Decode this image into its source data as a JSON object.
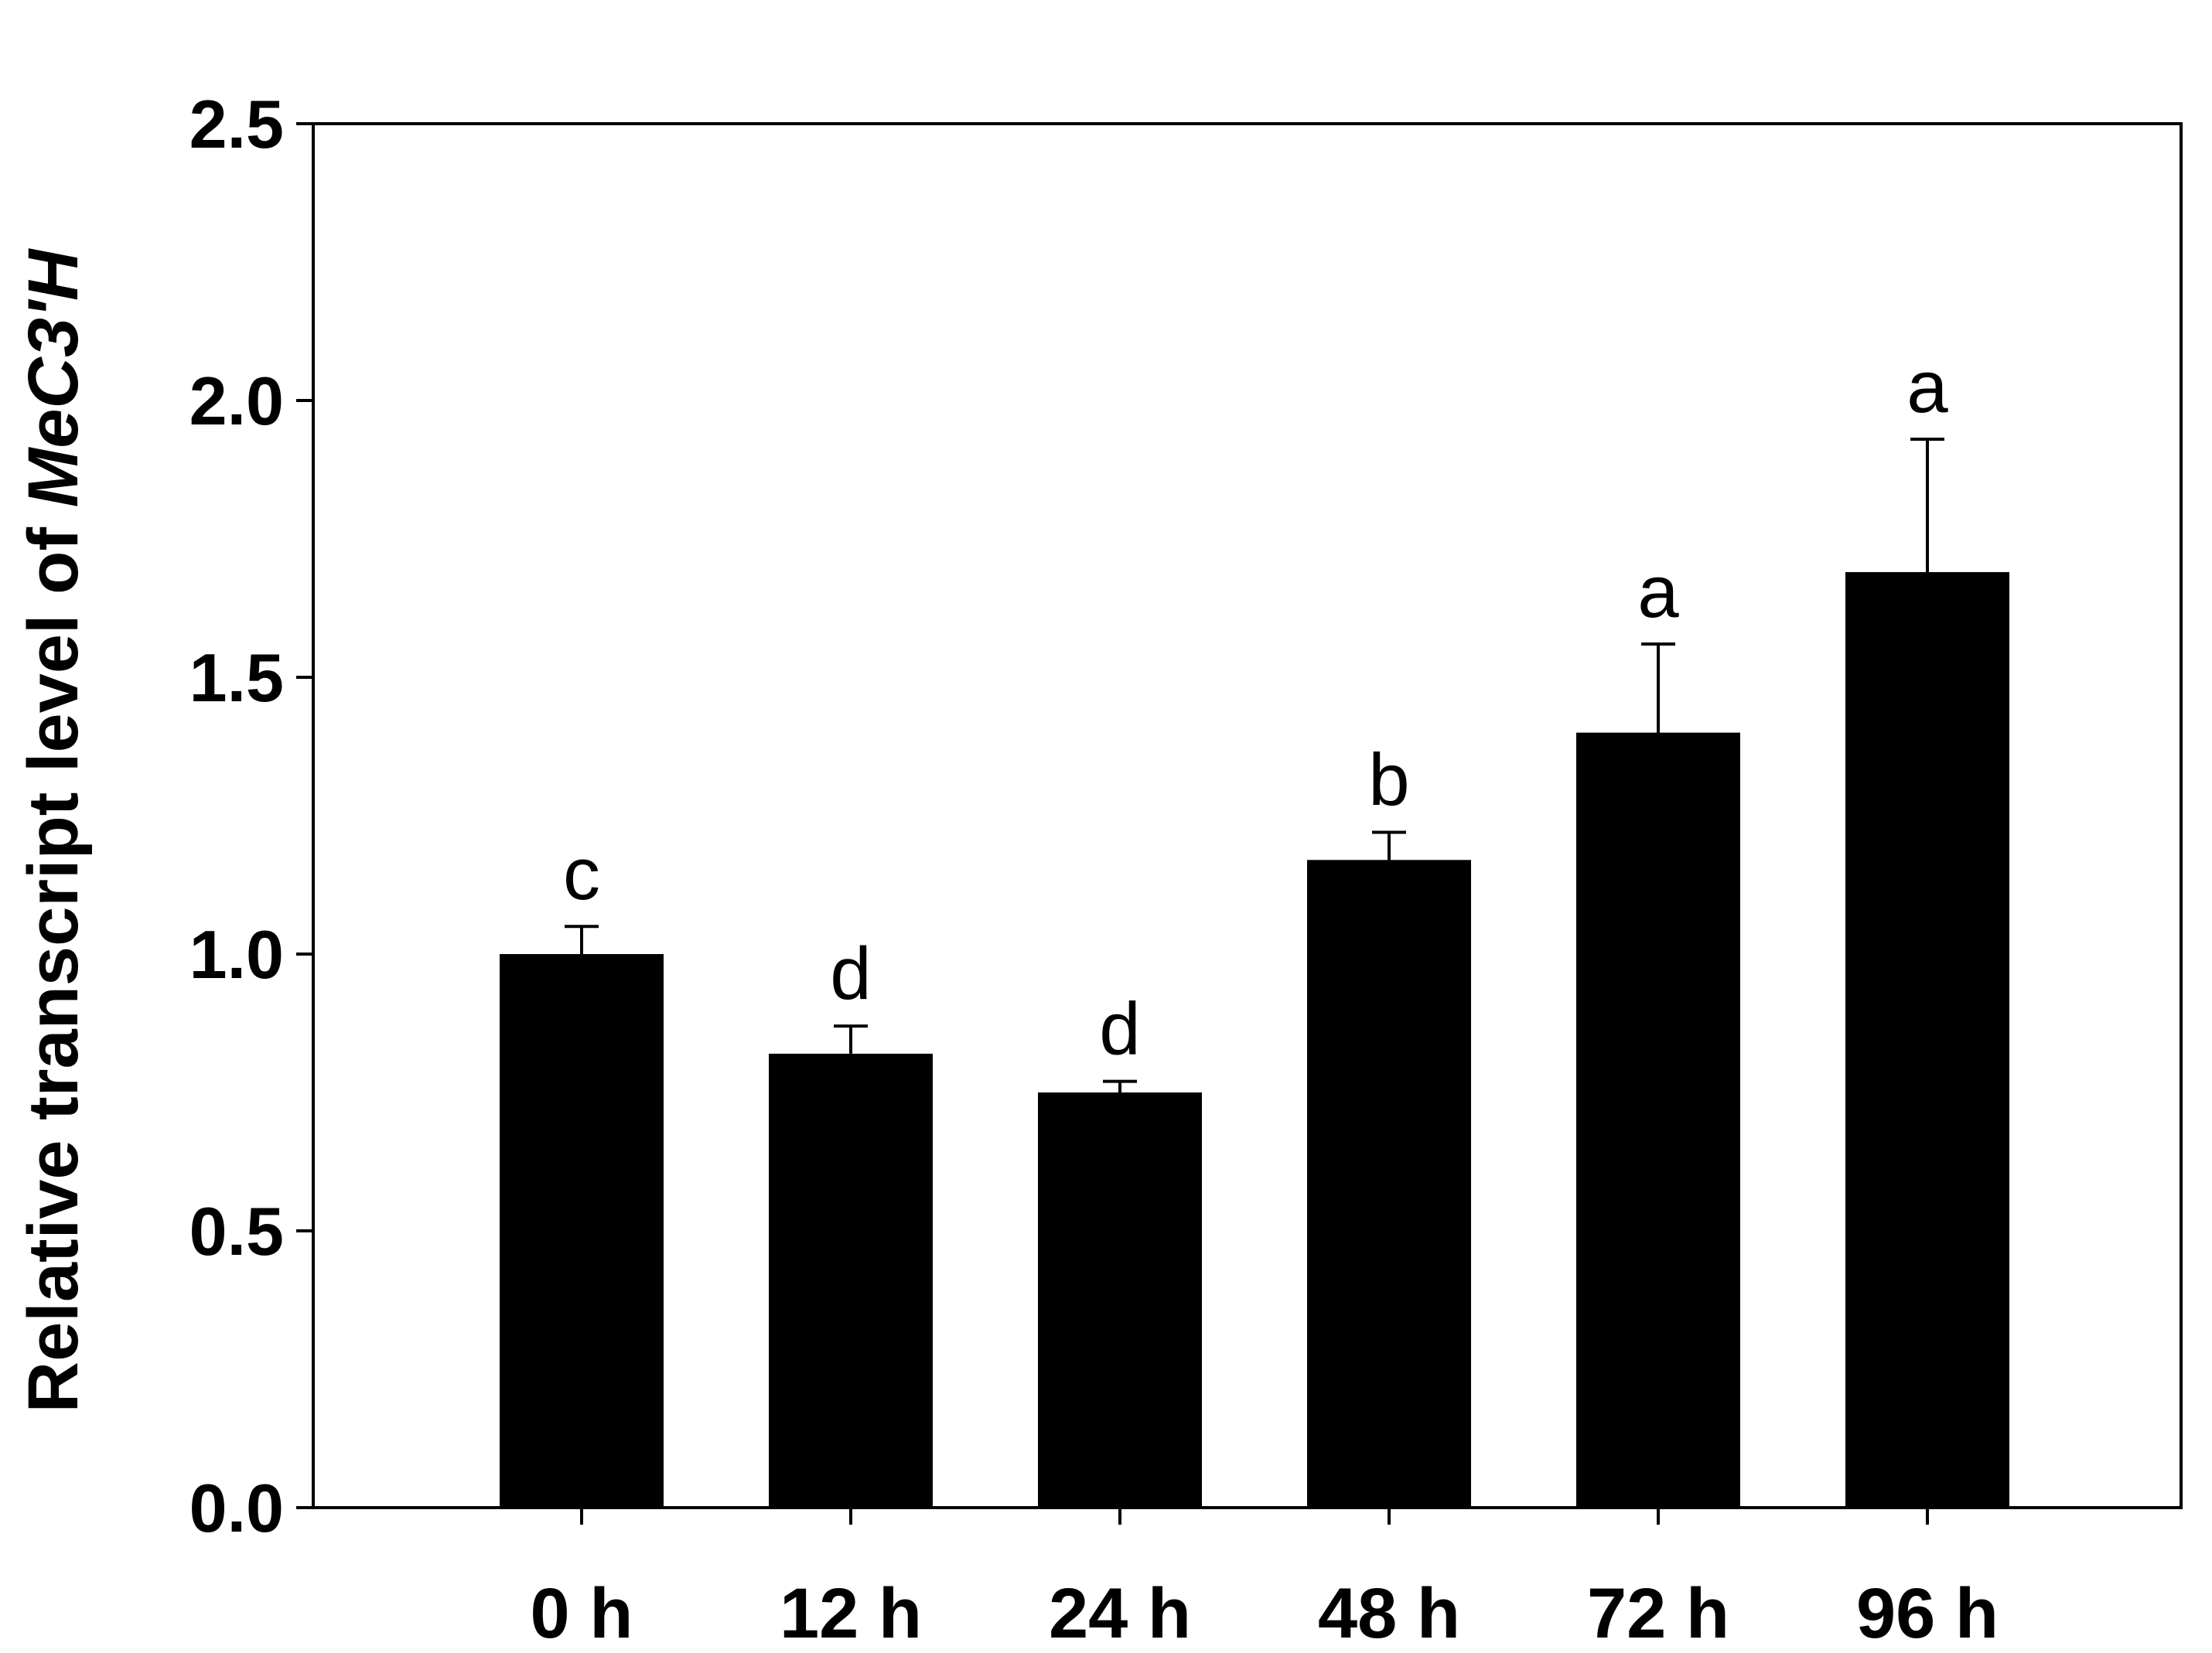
{
  "chart_data": {
    "type": "bar",
    "categories": [
      "0 h",
      "12 h",
      "24 h",
      "48 h",
      "72 h",
      "96 h"
    ],
    "values": [
      1.0,
      0.82,
      0.75,
      1.17,
      1.4,
      1.69
    ],
    "error_upper": [
      1.05,
      0.87,
      0.77,
      1.22,
      1.56,
      1.93
    ],
    "significance_letters": [
      "c",
      "d",
      "d",
      "b",
      "a",
      "a"
    ],
    "title": "",
    "xlabel": "",
    "ylabel_prefix": "Relative transcript level of ",
    "ylabel_gene": "MeC3'H",
    "ylim": [
      0,
      2.5
    ],
    "yticks": [
      "0.0",
      "0.5",
      "1.0",
      "1.5",
      "2.0",
      "2.5"
    ],
    "ytick_values": [
      0,
      0.5,
      1.0,
      1.5,
      2.0,
      2.5
    ],
    "bar_color": "#000000",
    "grid": false,
    "legend": "none"
  }
}
